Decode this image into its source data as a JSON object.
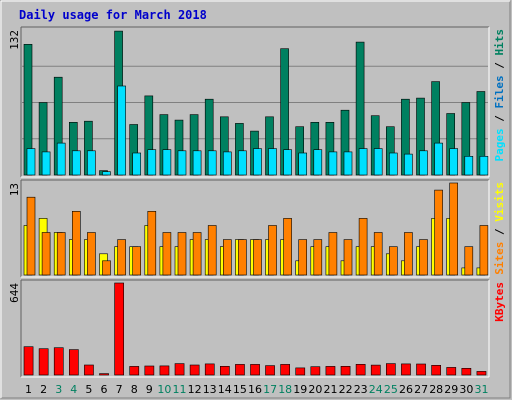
{
  "chart_data": {
    "type": "bar",
    "title": "Daily usage for March 2018",
    "categories": [
      "1",
      "2",
      "3",
      "4",
      "5",
      "6",
      "7",
      "8",
      "9",
      "10",
      "11",
      "12",
      "13",
      "14",
      "15",
      "16",
      "17",
      "18",
      "19",
      "20",
      "21",
      "22",
      "23",
      "24",
      "25",
      "26",
      "27",
      "28",
      "29",
      "30",
      "31"
    ],
    "weekend_days": [
      "3",
      "4",
      "10",
      "11",
      "17",
      "18",
      "24",
      "25",
      "31"
    ],
    "panels": [
      {
        "name": "hits-files-pages",
        "ymax": 132,
        "ymax_label": "132",
        "side_label": [
          "Pages",
          " / ",
          "Files",
          " / ",
          "Hits"
        ],
        "side_colors": [
          "#00e0ff",
          "#000000",
          "#0070c0",
          "#000000",
          "#008060"
        ],
        "series": [
          {
            "name": "Hits",
            "color": "#008060",
            "values": [
              119,
              66,
              89,
              48,
              49,
              4,
              131,
              46,
              72,
              55,
              50,
              55,
              69,
              53,
              47,
              40,
              53,
              115,
              44,
              48,
              48,
              59,
              121,
              54,
              44,
              69,
              70,
              85,
              56,
              66,
              76
            ]
          },
          {
            "name": "Files",
            "color": "#00e0ff",
            "values": [
              24,
              21,
              29,
              22,
              22,
              3,
              81,
              20,
              23,
              23,
              22,
              22,
              22,
              21,
              22,
              24,
              24,
              23,
              20,
              23,
              21,
              21,
              24,
              24,
              20,
              19,
              22,
              29,
              24,
              17,
              17
            ]
          }
        ]
      },
      {
        "name": "visits-sites",
        "ymax": 13,
        "ymax_label": "13",
        "side_label": [
          "Sites",
          " / ",
          "Visits"
        ],
        "side_colors": [
          "#ff8000",
          "#000000",
          "#ffff00"
        ],
        "series": [
          {
            "name": "Visits",
            "color": "#ffff00",
            "values": [
              7,
              8,
              6,
              5,
              5,
              3,
              4,
              4,
              7,
              4,
              4,
              5,
              5,
              4,
              5,
              5,
              5,
              5,
              2,
              4,
              4,
              2,
              4,
              4,
              3,
              2,
              4,
              8,
              8,
              1,
              1
            ]
          },
          {
            "name": "Sites",
            "color": "#ff8000",
            "values": [
              11,
              6,
              6,
              9,
              6,
              2,
              5,
              4,
              9,
              6,
              6,
              6,
              7,
              5,
              5,
              5,
              7,
              8,
              5,
              5,
              6,
              5,
              8,
              6,
              4,
              6,
              5,
              12,
              13,
              4,
              7
            ]
          }
        ]
      },
      {
        "name": "kbytes",
        "ymax": 644,
        "ymax_label": "644",
        "side_label": [
          "KBytes"
        ],
        "side_colors": [
          "#ff0000"
        ],
        "series": [
          {
            "name": "KBytes",
            "color": "#ff0000",
            "values": [
              198,
              184,
              191,
              178,
              70,
              10,
              644,
              60,
              63,
              64,
              80,
              70,
              78,
              61,
              74,
              74,
              66,
              74,
              50,
              58,
              60,
              61,
              75,
              69,
              80,
              78,
              77,
              68,
              53,
              47,
              25
            ]
          }
        ]
      }
    ]
  }
}
